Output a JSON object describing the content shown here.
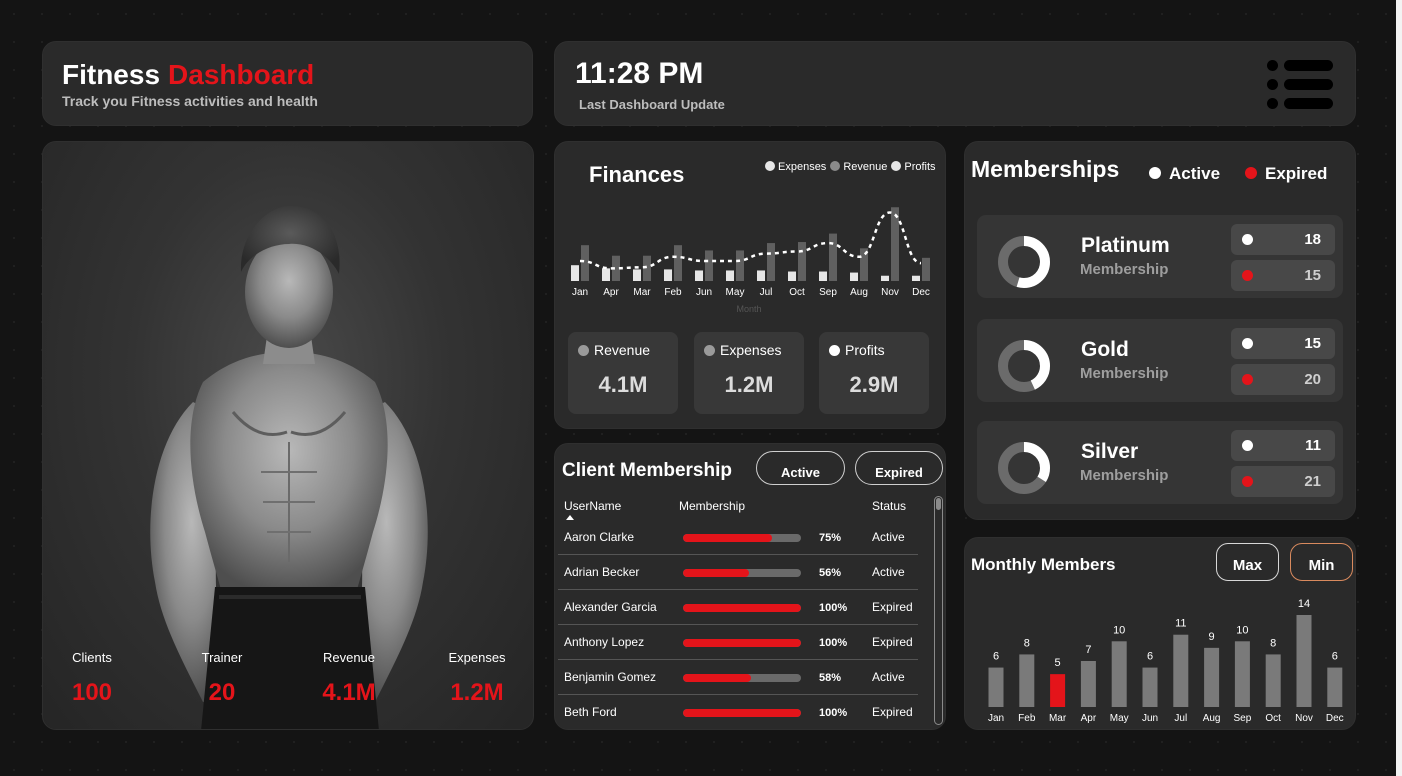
{
  "colors": {
    "accent": "#e4141a",
    "card": "#2a2a2a",
    "subcard": "#383838",
    "bar_gray": "#7a7a7a",
    "bar_dark": "#606060",
    "bar_light": "#e6e6e6"
  },
  "header": {
    "title_white": "Fitness",
    "title_red": "Dashboard",
    "subtitle": "Track you Fitness activities and health"
  },
  "time": {
    "value": "11:28 PM",
    "label": "Last Dashboard Update",
    "menu_icon": "hamburger-list-icon"
  },
  "hero": {
    "stats": [
      {
        "label": "Clients",
        "value": "100"
      },
      {
        "label": "Trainer",
        "value": "20"
      },
      {
        "label": "Revenue",
        "value": "4.1M"
      },
      {
        "label": "Expenses",
        "value": "1.2M"
      }
    ]
  },
  "finances": {
    "title": "Finances",
    "legend": [
      {
        "label": "Expenses",
        "color": "#e6e6e6"
      },
      {
        "label": "Revenue",
        "color": "#8a8a8a"
      },
      {
        "label": "Profits",
        "color": "#e6e6e6"
      }
    ],
    "kpis": [
      {
        "label": "Revenue",
        "value": "4.1M",
        "color": "#9a9a9a"
      },
      {
        "label": "Expenses",
        "value": "1.2M",
        "color": "#9a9a9a"
      },
      {
        "label": "Profits",
        "value": "2.9M",
        "color": "#ffffff"
      }
    ]
  },
  "chart_data": [
    {
      "type": "bar",
      "title": "Finances",
      "xlabel": "Month",
      "categories": [
        "Jan",
        "Apr",
        "Mar",
        "Feb",
        "Jun",
        "May",
        "Jul",
        "Oct",
        "Sep",
        "Aug",
        "Nov",
        "Dec"
      ],
      "series": [
        {
          "name": "Expenses",
          "values": [
            15,
            12,
            11,
            11,
            10,
            10,
            10,
            9,
            9,
            8,
            5,
            5
          ]
        },
        {
          "name": "Revenue",
          "values": [
            34,
            24,
            24,
            34,
            29,
            29,
            36,
            37,
            45,
            31,
            70,
            22
          ]
        },
        {
          "name": "Profits",
          "values": [
            19,
            12,
            13,
            23,
            19,
            19,
            26,
            28,
            36,
            23,
            65,
            17
          ]
        }
      ],
      "ylim": [
        0,
        75
      ],
      "legend": "top-right"
    },
    {
      "type": "bar",
      "title": "Monthly Members",
      "categories": [
        "Jan",
        "Feb",
        "Mar",
        "Apr",
        "May",
        "Jun",
        "Jul",
        "Aug",
        "Sep",
        "Oct",
        "Nov",
        "Dec"
      ],
      "values": [
        6,
        8,
        5,
        7,
        10,
        6,
        11,
        9,
        10,
        8,
        14,
        6
      ],
      "highlight": "Mar",
      "ylim": [
        0,
        14
      ]
    }
  ],
  "client": {
    "title": "Client Membership",
    "buttons": {
      "active": "Active",
      "expired": "Expired"
    },
    "columns": {
      "user": "UserName",
      "membership": "Membership",
      "status": "Status"
    },
    "rows": [
      {
        "name": "Aaron Clarke",
        "pct": "75%",
        "fill": 75,
        "status": "Active"
      },
      {
        "name": "Adrian Becker",
        "pct": "56%",
        "fill": 56,
        "status": "Active"
      },
      {
        "name": "Alexander Garcia",
        "pct": "100%",
        "fill": 100,
        "status": "Expired"
      },
      {
        "name": "Anthony Lopez",
        "pct": "100%",
        "fill": 100,
        "status": "Expired"
      },
      {
        "name": "Benjamin Gomez",
        "pct": "58%",
        "fill": 58,
        "status": "Active"
      },
      {
        "name": "Beth Ford",
        "pct": "100%",
        "fill": 100,
        "status": "Expired"
      }
    ]
  },
  "memberships": {
    "title": "Memberships",
    "legend": [
      {
        "label": "Active",
        "color": "#ffffff"
      },
      {
        "label": "Expired",
        "color": "#e4141a"
      }
    ],
    "tiers": [
      {
        "name": "Platinum",
        "sub": "Membership",
        "active": "18",
        "expired": "15",
        "active_share": 0.545
      },
      {
        "name": "Gold",
        "sub": "Membership",
        "active": "15",
        "expired": "20",
        "active_share": 0.43
      },
      {
        "name": "Silver",
        "sub": "Membership",
        "active": "11",
        "expired": "21",
        "active_share": 0.34
      }
    ]
  },
  "monthly": {
    "title": "Monthly Members",
    "max_label": "Max",
    "min_label": "Min"
  }
}
